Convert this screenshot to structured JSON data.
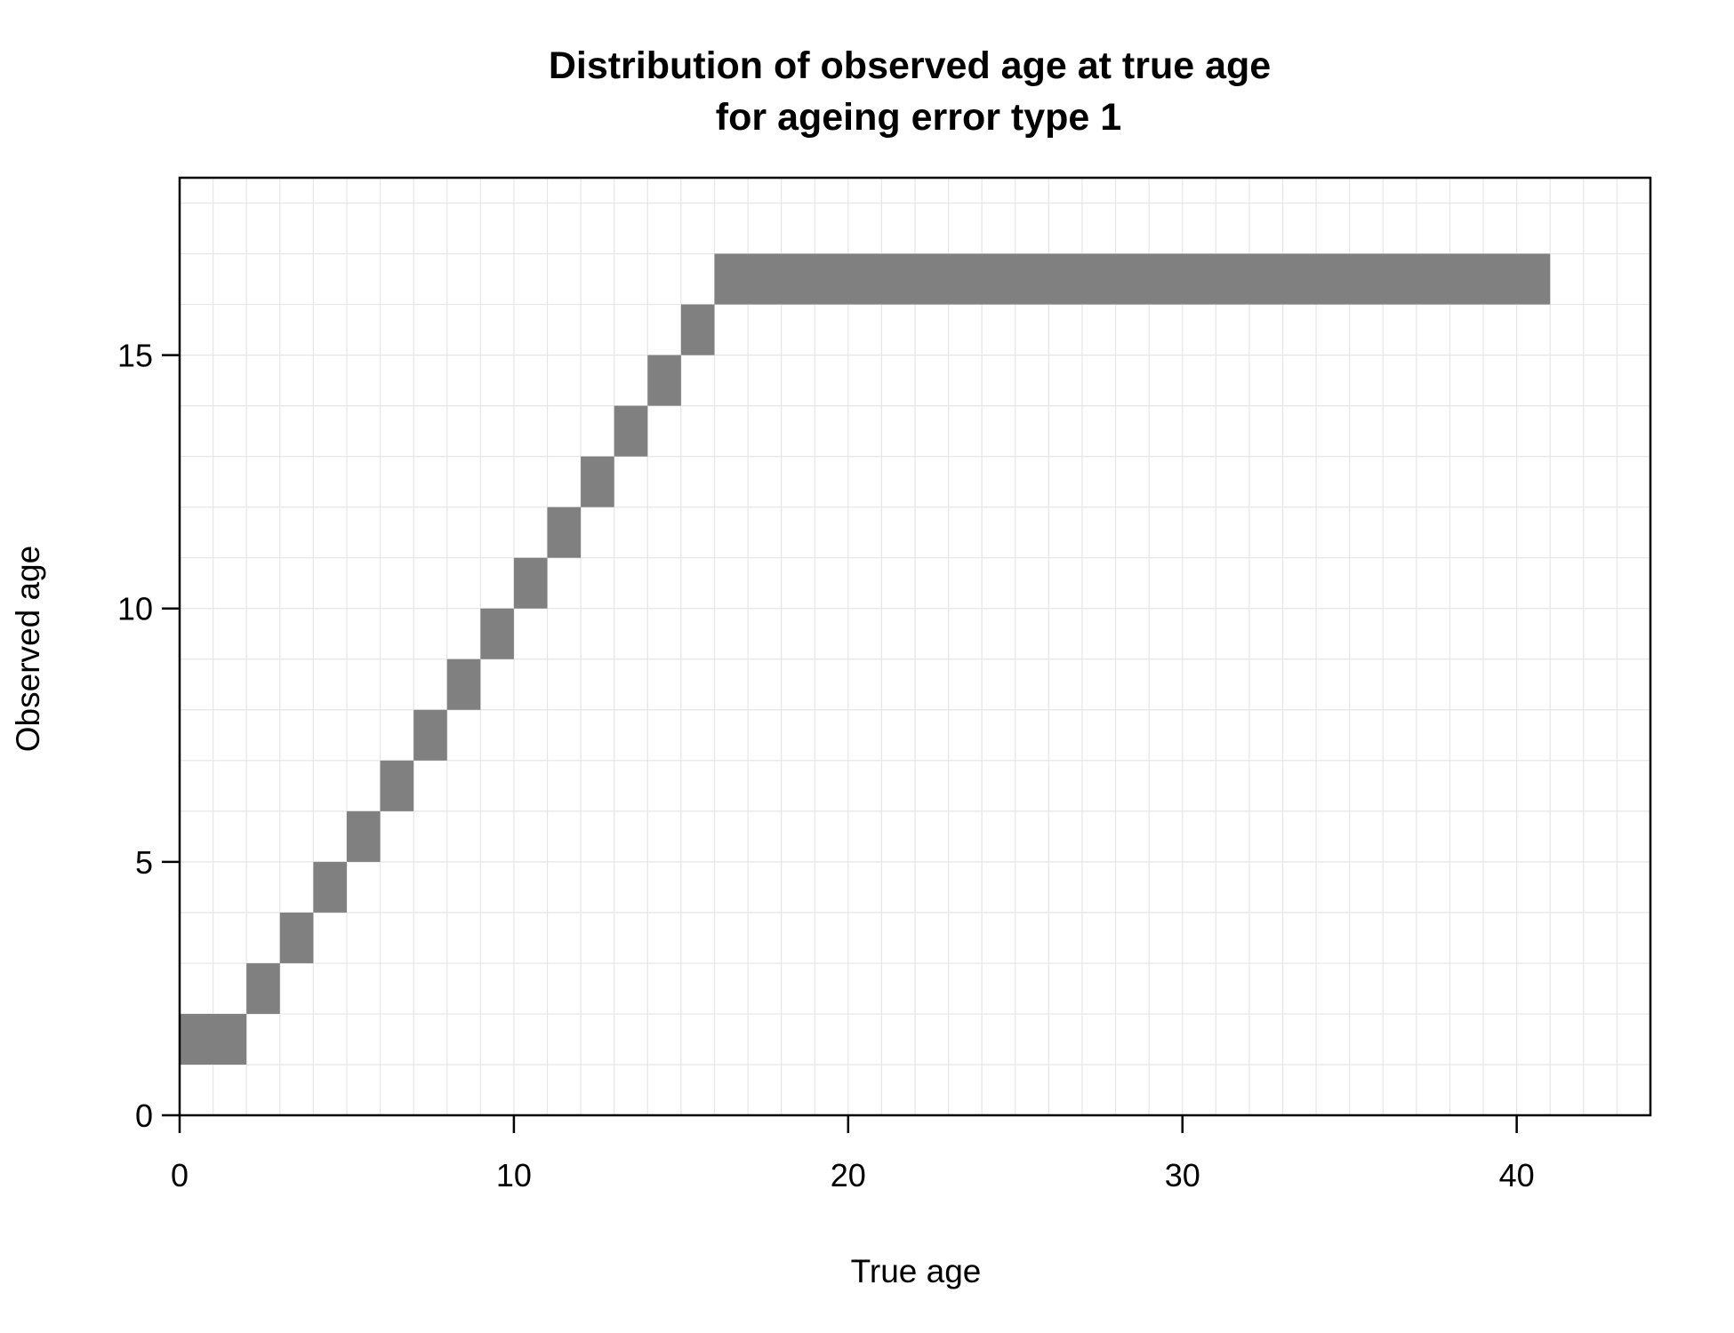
{
  "chart_data": {
    "type": "heatmap",
    "title": [
      "Distribution of observed age at true age",
      "for ageing error type 1"
    ],
    "xlabel": "True age",
    "ylabel": "Observed age",
    "xlim": [
      0,
      44
    ],
    "ylim": [
      0,
      18.5
    ],
    "x_ticks": [
      0,
      10,
      20,
      30,
      40
    ],
    "y_ticks": [
      0,
      5,
      10,
      15
    ],
    "grid": true,
    "cell_color": "#808080",
    "grid_color": "#e6e6e6",
    "cells": [
      {
        "x0": 0,
        "x1": 2,
        "y": 1
      },
      {
        "x0": 2,
        "x1": 3,
        "y": 2
      },
      {
        "x0": 3,
        "x1": 4,
        "y": 3
      },
      {
        "x0": 4,
        "x1": 5,
        "y": 4
      },
      {
        "x0": 5,
        "x1": 6,
        "y": 5
      },
      {
        "x0": 6,
        "x1": 7,
        "y": 6
      },
      {
        "x0": 7,
        "x1": 8,
        "y": 7
      },
      {
        "x0": 8,
        "x1": 9,
        "y": 8
      },
      {
        "x0": 9,
        "x1": 10,
        "y": 9
      },
      {
        "x0": 10,
        "x1": 11,
        "y": 10
      },
      {
        "x0": 11,
        "x1": 12,
        "y": 11
      },
      {
        "x0": 12,
        "x1": 13,
        "y": 12
      },
      {
        "x0": 13,
        "x1": 14,
        "y": 13
      },
      {
        "x0": 14,
        "x1": 15,
        "y": 14
      },
      {
        "x0": 15,
        "x1": 16,
        "y": 15
      },
      {
        "x0": 16,
        "x1": 41,
        "y": 16
      }
    ]
  }
}
